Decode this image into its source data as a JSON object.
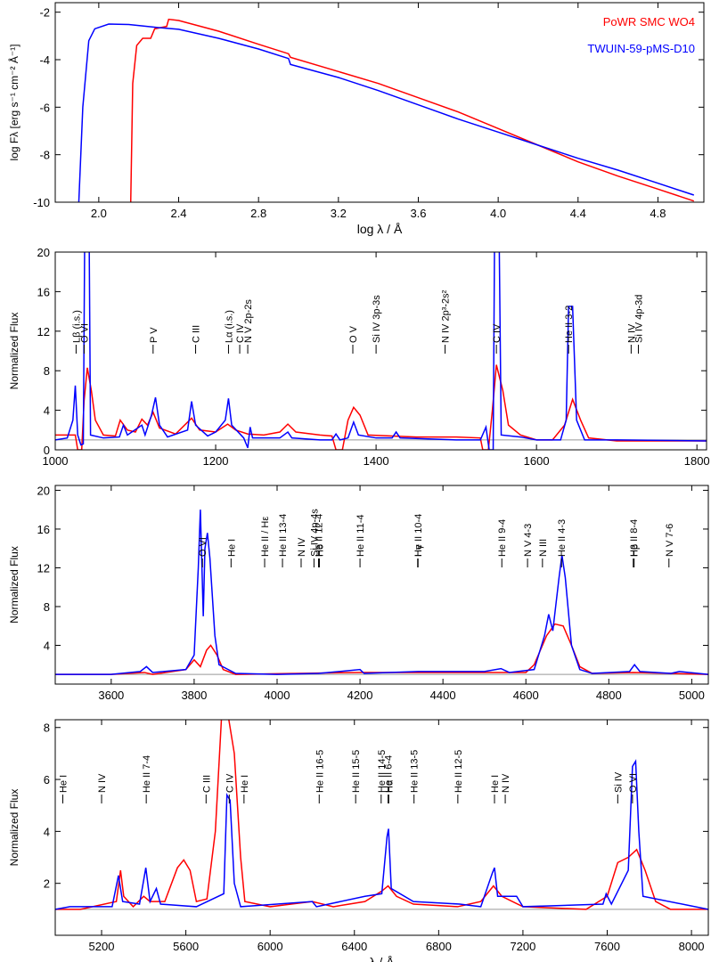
{
  "chart_data": [
    {
      "type": "line",
      "xlabel": "log λ / Å",
      "ylabel": "log Fλ [erg s⁻¹ cm⁻² Å⁻¹]",
      "xlim": [
        1.782,
        5.03
      ],
      "ylim": [
        -10,
        -1.6
      ],
      "xticks": [
        {
          "value": 2,
          "label": "2.0"
        },
        2.4,
        2.8,
        3.2,
        3.6,
        {
          "value": 4,
          "label": "4.0"
        },
        4.4,
        4.8
      ],
      "yticks": [
        -2,
        -4,
        -6,
        -8,
        -10
      ],
      "legend": "upper right",
      "series": [
        {
          "name": "PoWR SMC WO4",
          "color": "#ff0000",
          "x": [
            2.16,
            2.17,
            2.19,
            2.22,
            2.26,
            2.28,
            2.34,
            2.35,
            2.4,
            2.6,
            2.8,
            2.95,
            2.96,
            3.2,
            3.4,
            3.6,
            3.8,
            4.0,
            4.2,
            4.4,
            4.6,
            4.8,
            4.98
          ],
          "values": [
            -10,
            -5,
            -3.4,
            -3.1,
            -3.1,
            -2.7,
            -2.6,
            -2.3,
            -2.35,
            -2.8,
            -3.35,
            -3.75,
            -3.9,
            -4.5,
            -5.0,
            -5.6,
            -6.2,
            -6.9,
            -7.6,
            -8.3,
            -8.9,
            -9.45,
            -9.95
          ]
        },
        {
          "name": "TWUIN-59-pMS-D10",
          "color": "#0000ff",
          "x": [
            1.9,
            1.92,
            1.95,
            1.98,
            2.05,
            2.15,
            2.3,
            2.4,
            2.6,
            2.8,
            2.95,
            2.96,
            3.2,
            3.4,
            3.6,
            3.8,
            4.0,
            4.2,
            4.4,
            4.6,
            4.8,
            4.98
          ],
          "values": [
            -10,
            -6,
            -3.2,
            -2.7,
            -2.5,
            -2.52,
            -2.65,
            -2.72,
            -3.1,
            -3.55,
            -3.95,
            -4.2,
            -4.75,
            -5.3,
            -5.9,
            -6.5,
            -7.05,
            -7.6,
            -8.15,
            -8.65,
            -9.2,
            -9.7
          ]
        }
      ]
    },
    {
      "type": "line",
      "ylabel": "Normalized Flux",
      "xlim": [
        1000,
        1812
      ],
      "ylim": [
        0,
        20
      ],
      "xticks": [
        1000,
        1200,
        1400,
        1600,
        1800
      ],
      "yticks": [
        0,
        4,
        8,
        12,
        16,
        20
      ],
      "reference_line": 1,
      "series": [
        {
          "color": "#ff0000",
          "x": [
            1000,
            1025,
            1028,
            1033,
            1036,
            1040,
            1045,
            1050,
            1060,
            1075,
            1081,
            1090,
            1100,
            1108,
            1115,
            1122,
            1130,
            1150,
            1165,
            1170,
            1180,
            1200,
            1215,
            1225,
            1240,
            1260,
            1280,
            1290,
            1300,
            1330,
            1345,
            1350,
            1358,
            1365,
            1372,
            1380,
            1390,
            1420,
            1450,
            1500,
            1530,
            1533,
            1540,
            1545,
            1550,
            1558,
            1565,
            1580,
            1600,
            1620,
            1635,
            1645,
            1655,
            1665,
            1700,
            1750,
            1812
          ],
          "values": [
            1.5,
            1.5,
            0,
            0,
            5,
            8.3,
            6,
            3,
            1.5,
            1.4,
            3.0,
            2.0,
            1.8,
            3.1,
            2.5,
            3.8,
            2.2,
            1.6,
            2.8,
            3.2,
            2.0,
            1.8,
            2.6,
            2.0,
            1.6,
            1.5,
            1.8,
            2.6,
            1.8,
            1.5,
            1.4,
            0,
            0,
            3,
            4.3,
            3.5,
            1.5,
            1.4,
            1.3,
            1.3,
            1.2,
            0,
            0,
            4,
            8.6,
            6,
            2.5,
            1.5,
            1.0,
            1.0,
            2.5,
            5.1,
            3,
            1.2,
            0.9,
            0.9,
            0.9
          ]
        },
        {
          "color": "#0000ff",
          "x": [
            1000,
            1015,
            1022,
            1025,
            1028,
            1032,
            1035,
            1037,
            1042,
            1044,
            1060,
            1080,
            1085,
            1090,
            1108,
            1112,
            1120,
            1125,
            1130,
            1140,
            1165,
            1170,
            1175,
            1190,
            1200,
            1212,
            1216,
            1220,
            1235,
            1240,
            1243,
            1246,
            1280,
            1290,
            1295,
            1330,
            1345,
            1350,
            1355,
            1365,
            1372,
            1378,
            1400,
            1420,
            1425,
            1430,
            1500,
            1530,
            1537,
            1541,
            1546,
            1548,
            1553,
            1556,
            1580,
            1600,
            1630,
            1637,
            1640,
            1645,
            1650,
            1660,
            1700,
            1812
          ],
          "values": [
            1.0,
            1.2,
            3,
            6.5,
            1.5,
            0.5,
            0.6,
            25,
            25,
            1.5,
            1.2,
            1.3,
            2.5,
            1.5,
            2.5,
            1.5,
            3.5,
            5.3,
            2.5,
            1.3,
            2,
            4.9,
            2.5,
            1.4,
            1.8,
            3,
            5.2,
            2.5,
            1.2,
            0.2,
            2.3,
            1.2,
            1.2,
            1.8,
            1.2,
            1.0,
            1.0,
            1.6,
            1.0,
            1.2,
            2.8,
            1.5,
            1.2,
            1.2,
            1.8,
            1.2,
            1.0,
            1.0,
            2.3,
            0,
            0,
            25,
            25,
            1.5,
            1.3,
            1.0,
            1.0,
            3,
            14.5,
            14.5,
            3,
            1.0,
            1.0,
            0.9
          ]
        }
      ],
      "annotations": [
        {
          "text": "Lβ (i.s.)",
          "x": 1026
        },
        {
          "text": "O VI",
          "x": 1036
        },
        {
          "text": "P V",
          "x": 1122
        },
        {
          "text": "C III",
          "x": 1175
        },
        {
          "text": "Lα (i.s.)",
          "x": 1216
        },
        {
          "text": "C IV",
          "x": 1230
        },
        {
          "text": "N V 2p-2s",
          "x": 1240
        },
        {
          "text": "O V",
          "x": 1371
        },
        {
          "text": "Si IV 3p-3s",
          "x": 1400
        },
        {
          "text": "N IV 2p³-2s²",
          "x": 1486
        },
        {
          "text": "C IV",
          "x": 1550
        },
        {
          "text": "He II 3-2",
          "x": 1640
        },
        {
          "text": "N IV",
          "x": 1718
        },
        {
          "text": "Si IV 4p-3d",
          "x": 1727
        }
      ]
    },
    {
      "type": "line",
      "ylabel": "Normalized Flux",
      "xlim": [
        3465,
        5040
      ],
      "ylim": [
        0,
        20.5
      ],
      "xticks": [
        3600,
        3800,
        4000,
        4200,
        4400,
        4600,
        4800,
        5000
      ],
      "yticks": [
        4,
        8,
        12,
        16,
        20
      ],
      "reference_line": 1,
      "series": [
        {
          "color": "#ff0000",
          "x": [
            3465,
            3600,
            3680,
            3700,
            3780,
            3800,
            3815,
            3830,
            3840,
            3855,
            3870,
            3900,
            4200,
            4600,
            4620,
            4650,
            4670,
            4690,
            4710,
            4730,
            4760,
            4860,
            5040
          ],
          "values": [
            1,
            1,
            1.2,
            1,
            1.5,
            2.5,
            1.8,
            3.5,
            4,
            3,
            1.5,
            1,
            1.2,
            1.2,
            2,
            5,
            6.2,
            6,
            4,
            1.8,
            1.1,
            1.2,
            1.0
          ]
        },
        {
          "color": "#0000ff",
          "x": [
            3465,
            3600,
            3670,
            3685,
            3700,
            3780,
            3800,
            3810,
            3815,
            3822,
            3826,
            3832,
            3838,
            3850,
            3860,
            3900,
            4000,
            4100,
            4200,
            4210,
            4340,
            4500,
            4540,
            4560,
            4620,
            4645,
            4655,
            4665,
            4680,
            4687,
            4695,
            4710,
            4730,
            4760,
            4850,
            4862,
            4875,
            4950,
            4970,
            5040
          ],
          "values": [
            1,
            1,
            1.3,
            1.8,
            1.2,
            1.5,
            3,
            12,
            18,
            7,
            14,
            15.6,
            13,
            5,
            2,
            1.1,
            1.0,
            1.1,
            1.5,
            1.1,
            1.3,
            1.3,
            1.6,
            1.2,
            1.5,
            5,
            7.2,
            5.5,
            11,
            13.3,
            11,
            4,
            1.5,
            1.1,
            1.3,
            2,
            1.3,
            1.1,
            1.3,
            1.0
          ]
        }
      ],
      "annotations": [
        {
          "text": "O VI",
          "x": 3820
        },
        {
          "text": "He I",
          "x": 3889
        },
        {
          "text": "He II / Hε",
          "x": 3970
        },
        {
          "text": "He II 13-4",
          "x": 4013
        },
        {
          "text": "N IV",
          "x": 4058
        },
        {
          "text": "Si IV 4p-4s",
          "x": 4089
        },
        {
          "text": "He II 12-4",
          "x": 4100
        },
        {
          "text": "Hδ",
          "x": 4102
        },
        {
          "text": "He II 11-4",
          "x": 4200
        },
        {
          "text": "He II 10-4",
          "x": 4339
        },
        {
          "text": "Hγ",
          "x": 4340
        },
        {
          "text": "He II 9-4",
          "x": 4542
        },
        {
          "text": "N V 4-3",
          "x": 4604
        },
        {
          "text": "N III",
          "x": 4640
        },
        {
          "text": "He II 4-3",
          "x": 4686
        },
        {
          "text": "He II 8-4",
          "x": 4859
        },
        {
          "text": "Hβ",
          "x": 4861
        },
        {
          "text": "N V 7-6",
          "x": 4945
        }
      ]
    },
    {
      "type": "line",
      "xlabel": "λ / Å",
      "ylabel": "Normalized Flux",
      "xlim": [
        4980,
        8080
      ],
      "ylim": [
        0,
        8.3
      ],
      "xticks": [
        5200,
        5600,
        6000,
        6400,
        6800,
        7200,
        7600,
        8000
      ],
      "yticks": [
        2,
        4,
        6,
        8
      ],
      "reference_line": 1,
      "series": [
        {
          "color": "#ff0000",
          "x": [
            4980,
            5100,
            5270,
            5290,
            5305,
            5350,
            5400,
            5430,
            5500,
            5560,
            5590,
            5620,
            5650,
            5700,
            5740,
            5770,
            5800,
            5830,
            5860,
            5880,
            6000,
            6200,
            6300,
            6450,
            6530,
            6560,
            6600,
            6680,
            6890,
            7000,
            7060,
            7100,
            7200,
            7500,
            7600,
            7650,
            7700,
            7740,
            7780,
            7830,
            7900,
            8080
          ],
          "values": [
            1,
            1.0,
            1.3,
            2.5,
            1.5,
            1.1,
            1.5,
            1.3,
            1.3,
            2.6,
            2.9,
            2.5,
            1.3,
            1.4,
            4,
            8.5,
            8.5,
            7,
            3,
            1.3,
            1.1,
            1.3,
            1.1,
            1.3,
            1.7,
            1.9,
            1.5,
            1.2,
            1.1,
            1.3,
            1.9,
            1.5,
            1.1,
            1.0,
            1.5,
            2.8,
            3.0,
            3.3,
            2.5,
            1.3,
            1.0,
            1.0
          ]
        },
        {
          "color": "#0000ff",
          "x": [
            4980,
            5050,
            5250,
            5280,
            5300,
            5380,
            5410,
            5430,
            5460,
            5480,
            5650,
            5780,
            5795,
            5810,
            5830,
            5860,
            6200,
            6220,
            6450,
            6530,
            6555,
            6562,
            6575,
            6680,
            6900,
            7000,
            7055,
            7065,
            7080,
            7170,
            7200,
            7580,
            7595,
            7620,
            7700,
            7720,
            7735,
            7750,
            7770,
            8080
          ],
          "values": [
            1,
            1.1,
            1.1,
            2.3,
            1.3,
            1.2,
            2.6,
            1.3,
            1.8,
            1.2,
            1.1,
            1.6,
            5.4,
            5.2,
            2,
            1.1,
            1.3,
            1.1,
            1.5,
            1.6,
            3.8,
            4.1,
            1.8,
            1.3,
            1.2,
            1.1,
            2.4,
            2.6,
            1.5,
            1.5,
            1.1,
            1.2,
            1.6,
            1.2,
            2.5,
            6.5,
            6.7,
            4,
            1.5,
            1.0
          ]
        }
      ],
      "annotations": [
        {
          "text": "He I",
          "x": 5016
        },
        {
          "text": "N IV",
          "x": 5200
        },
        {
          "text": "He II 7-4",
          "x": 5412
        },
        {
          "text": "C III",
          "x": 5696
        },
        {
          "text": "C IV",
          "x": 5806
        },
        {
          "text": "He I",
          "x": 5876
        },
        {
          "text": "He II 16-5",
          "x": 6233
        },
        {
          "text": "He II 15-5",
          "x": 6406
        },
        {
          "text": "He II 14-5",
          "x": 6527
        },
        {
          "text": "He II 6-4",
          "x": 6560
        },
        {
          "text": "Hα",
          "x": 6563
        },
        {
          "text": "He II 13-5",
          "x": 6683
        },
        {
          "text": "He II 12-5",
          "x": 6891
        },
        {
          "text": "He I",
          "x": 7065
        },
        {
          "text": "N IV",
          "x": 7116
        },
        {
          "text": "Si IV",
          "x": 7650
        },
        {
          "text": "O VI",
          "x": 7720
        }
      ]
    }
  ]
}
